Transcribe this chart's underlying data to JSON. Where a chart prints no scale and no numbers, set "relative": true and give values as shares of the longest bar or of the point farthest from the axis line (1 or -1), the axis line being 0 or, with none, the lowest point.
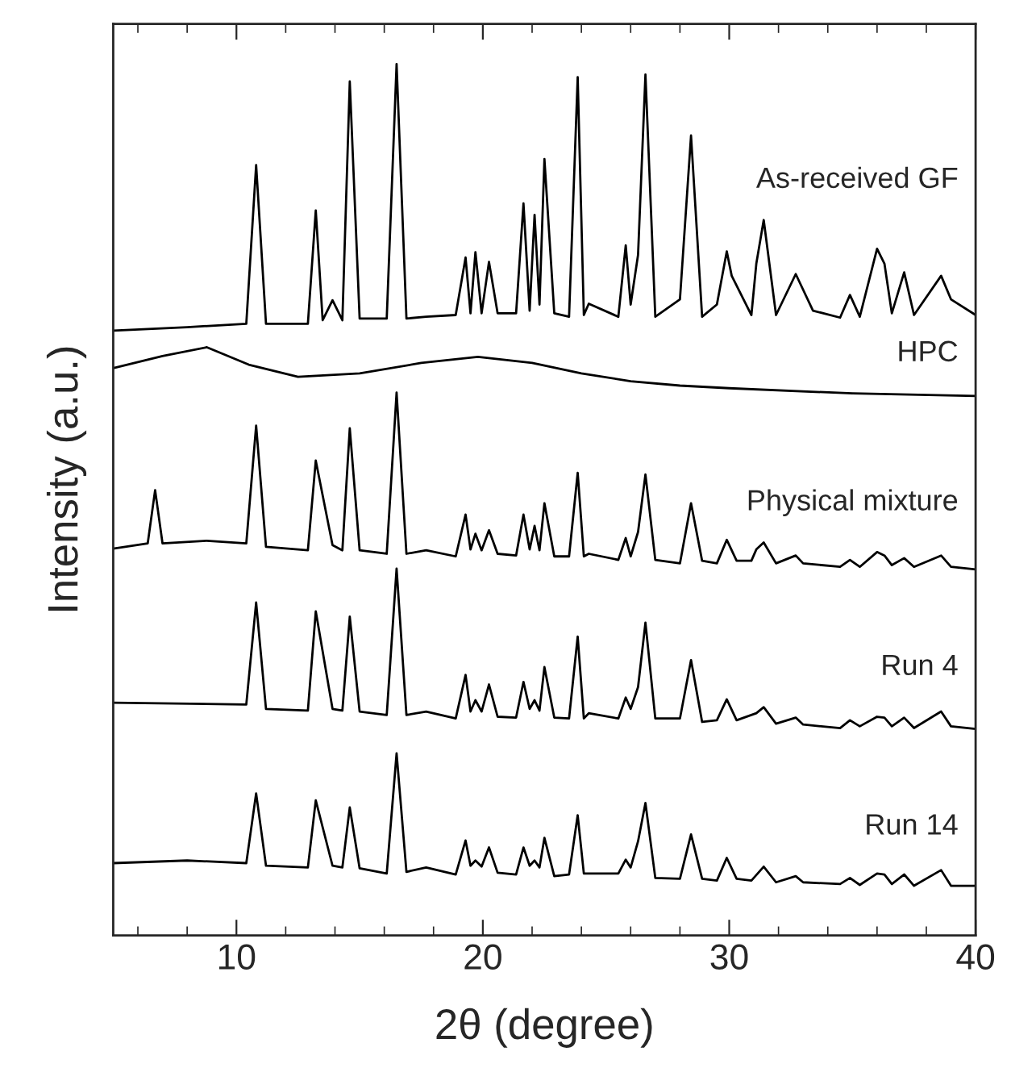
{
  "chart_data": {
    "type": "line",
    "relative": true,
    "xlabel": "2θ (degree)",
    "ylabel": "Intensity (a.u.)",
    "xlim": [
      5,
      40
    ],
    "xticks": [
      {
        "value": 6,
        "label": null
      },
      {
        "value": 8,
        "label": null
      },
      10,
      {
        "value": 12,
        "label": null
      },
      {
        "value": 14,
        "label": null
      },
      {
        "value": 16,
        "label": null
      },
      {
        "value": 18,
        "label": null
      },
      20,
      {
        "value": 22,
        "label": null
      },
      {
        "value": 24,
        "label": null
      },
      {
        "value": 26,
        "label": null
      },
      {
        "value": 28,
        "label": null
      },
      30,
      {
        "value": 32,
        "label": null
      },
      {
        "value": 34,
        "label": null
      },
      {
        "value": 36,
        "label": null
      },
      {
        "value": 38,
        "label": null
      },
      40
    ],
    "grid": false,
    "legend": false,
    "marker": "none",
    "line_style": "solid",
    "series": [
      {
        "name": "As-received GF",
        "color": "#000000",
        "x": [
          5,
          8,
          10.4,
          10.8,
          11.2,
          12.9,
          13.22,
          13.5,
          13.9,
          14.3,
          14.6,
          15.0,
          16.1,
          16.5,
          16.9,
          17.7,
          18.9,
          19.3,
          19.5,
          19.7,
          19.95,
          20.25,
          20.6,
          21.35,
          21.65,
          21.9,
          22.1,
          22.3,
          22.5,
          22.9,
          23.5,
          23.85,
          24.1,
          24.3,
          25.5,
          25.8,
          26.0,
          26.3,
          26.6,
          27.0,
          28.0,
          28.45,
          28.9,
          29.5,
          29.9,
          30.1,
          30.9,
          31.1,
          31.4,
          31.9,
          32.7,
          33.4,
          34.5,
          34.9,
          35.3,
          36.0,
          36.3,
          36.6,
          37.1,
          37.5,
          38.6,
          39.0,
          40
        ],
        "values": [
          0.694,
          0.698,
          0.702,
          0.884,
          0.702,
          0.702,
          0.832,
          0.706,
          0.729,
          0.706,
          0.98,
          0.708,
          0.708,
          1.0,
          0.708,
          0.71,
          0.712,
          0.778,
          0.714,
          0.784,
          0.714,
          0.773,
          0.714,
          0.714,
          0.84,
          0.717,
          0.827,
          0.724,
          0.891,
          0.714,
          0.71,
          0.985,
          0.712,
          0.725,
          0.71,
          0.792,
          0.724,
          0.781,
          0.988,
          0.71,
          0.73,
          0.918,
          0.71,
          0.724,
          0.785,
          0.757,
          0.712,
          0.771,
          0.821,
          0.712,
          0.759,
          0.717,
          0.709,
          0.735,
          0.71,
          0.788,
          0.771,
          0.714,
          0.761,
          0.712,
          0.757,
          0.73,
          0.712
        ]
      },
      {
        "name": "HPC",
        "color": "#000000",
        "x": [
          5,
          7,
          8.8,
          10.5,
          12.5,
          15,
          17.5,
          19.8,
          22,
          24,
          26,
          28,
          30,
          35,
          40
        ],
        "values": [
          0.651,
          0.665,
          0.675,
          0.655,
          0.641,
          0.645,
          0.657,
          0.664,
          0.657,
          0.645,
          0.636,
          0.631,
          0.628,
          0.622,
          0.619
        ]
      },
      {
        "name": "Physical mixture",
        "color": "#000000",
        "x": [
          5,
          6.4,
          6.7,
          7.0,
          8.8,
          10.4,
          10.8,
          11.2,
          12.9,
          13.22,
          13.9,
          14.3,
          14.6,
          15.0,
          16.1,
          16.5,
          16.9,
          17.7,
          18.9,
          19.3,
          19.5,
          19.7,
          19.95,
          20.25,
          20.6,
          21.35,
          21.65,
          21.9,
          22.1,
          22.3,
          22.5,
          22.9,
          23.5,
          23.85,
          24.1,
          24.3,
          25.5,
          25.8,
          26.0,
          26.3,
          26.6,
          27.0,
          28.0,
          28.45,
          28.9,
          29.5,
          29.9,
          30.3,
          30.9,
          31.1,
          31.4,
          31.9,
          32.7,
          33.0,
          34.5,
          34.9,
          35.3,
          36.0,
          36.3,
          36.6,
          37.1,
          37.5,
          38.6,
          39.0,
          40
        ],
        "values": [
          0.444,
          0.45,
          0.511,
          0.45,
          0.453,
          0.45,
          0.585,
          0.446,
          0.442,
          0.545,
          0.448,
          0.442,
          0.582,
          0.442,
          0.438,
          0.623,
          0.438,
          0.442,
          0.435,
          0.483,
          0.443,
          0.461,
          0.442,
          0.465,
          0.438,
          0.436,
          0.483,
          0.443,
          0.47,
          0.442,
          0.496,
          0.435,
          0.435,
          0.531,
          0.435,
          0.438,
          0.431,
          0.456,
          0.435,
          0.463,
          0.529,
          0.431,
          0.427,
          0.496,
          0.43,
          0.427,
          0.454,
          0.43,
          0.43,
          0.443,
          0.451,
          0.427,
          0.436,
          0.427,
          0.423,
          0.431,
          0.423,
          0.44,
          0.436,
          0.425,
          0.433,
          0.423,
          0.436,
          0.423,
          0.42
        ]
      },
      {
        "name": "Run 4",
        "color": "#000000",
        "x": [
          5,
          10.4,
          10.8,
          11.2,
          12.9,
          13.22,
          13.9,
          14.3,
          14.6,
          15.0,
          16.1,
          16.5,
          16.9,
          17.7,
          18.9,
          19.3,
          19.5,
          19.7,
          19.95,
          20.25,
          20.6,
          21.35,
          21.65,
          21.9,
          22.1,
          22.3,
          22.5,
          22.9,
          23.5,
          23.85,
          24.1,
          24.3,
          25.5,
          25.8,
          26.0,
          26.3,
          26.6,
          27.0,
          28.0,
          28.45,
          28.9,
          29.5,
          29.9,
          30.3,
          31.1,
          31.4,
          31.9,
          32.7,
          33.0,
          34.5,
          34.9,
          35.3,
          36.0,
          36.3,
          36.6,
          37.1,
          37.5,
          38.6,
          39.0,
          40
        ],
        "values": [
          0.267,
          0.265,
          0.382,
          0.26,
          0.258,
          0.372,
          0.26,
          0.258,
          0.366,
          0.257,
          0.253,
          0.421,
          0.253,
          0.257,
          0.249,
          0.299,
          0.257,
          0.27,
          0.257,
          0.288,
          0.251,
          0.25,
          0.291,
          0.26,
          0.27,
          0.258,
          0.308,
          0.25,
          0.249,
          0.343,
          0.249,
          0.255,
          0.249,
          0.273,
          0.26,
          0.285,
          0.359,
          0.249,
          0.249,
          0.316,
          0.245,
          0.247,
          0.271,
          0.247,
          0.255,
          0.262,
          0.243,
          0.25,
          0.242,
          0.238,
          0.247,
          0.24,
          0.251,
          0.25,
          0.24,
          0.25,
          0.238,
          0.257,
          0.24,
          0.237
        ]
      },
      {
        "name": "Run 14",
        "color": "#000000",
        "x": [
          5,
          8,
          10.4,
          10.8,
          11.2,
          12.9,
          13.22,
          13.9,
          14.3,
          14.6,
          15.0,
          16.1,
          16.5,
          16.9,
          17.7,
          18.9,
          19.3,
          19.5,
          19.7,
          19.95,
          20.25,
          20.6,
          21.35,
          21.65,
          21.9,
          22.1,
          22.3,
          22.5,
          22.9,
          23.5,
          23.85,
          24.1,
          25.5,
          25.8,
          26.0,
          26.3,
          26.6,
          27.0,
          28.0,
          28.45,
          28.9,
          29.5,
          29.9,
          30.3,
          30.9,
          31.4,
          31.9,
          32.7,
          33.0,
          34.5,
          34.9,
          35.3,
          36.0,
          36.3,
          36.6,
          37.1,
          37.5,
          38.6,
          39.0,
          40
        ],
        "values": [
          0.083,
          0.086,
          0.083,
          0.163,
          0.08,
          0.078,
          0.155,
          0.08,
          0.078,
          0.147,
          0.077,
          0.071,
          0.209,
          0.073,
          0.078,
          0.07,
          0.109,
          0.08,
          0.086,
          0.079,
          0.101,
          0.072,
          0.07,
          0.101,
          0.08,
          0.086,
          0.078,
          0.112,
          0.068,
          0.07,
          0.138,
          0.071,
          0.071,
          0.087,
          0.078,
          0.108,
          0.152,
          0.066,
          0.065,
          0.116,
          0.065,
          0.063,
          0.089,
          0.065,
          0.063,
          0.079,
          0.061,
          0.068,
          0.061,
          0.059,
          0.066,
          0.058,
          0.071,
          0.07,
          0.059,
          0.07,
          0.057,
          0.075,
          0.057,
          0.057
        ]
      }
    ]
  }
}
